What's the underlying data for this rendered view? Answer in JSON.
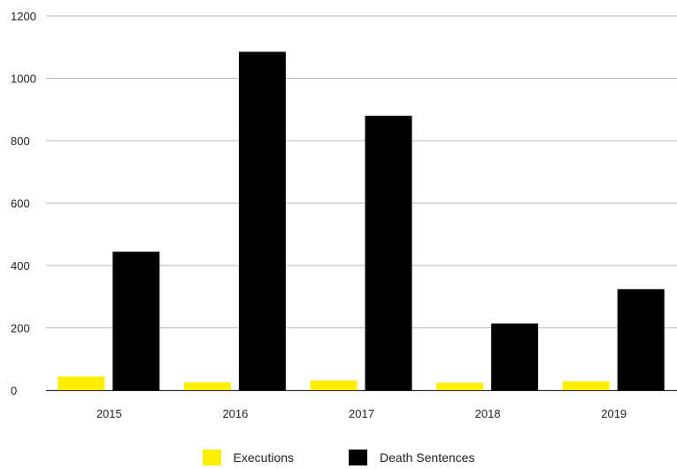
{
  "chart_data": {
    "type": "bar",
    "title": "",
    "xlabel": "",
    "ylabel": "",
    "categories": [
      "2015",
      "2016",
      "2017",
      "2018",
      "2019"
    ],
    "series": [
      {
        "name": "Executions",
        "color": "#ffee00",
        "values": [
          44,
          25,
          31,
          24,
          28
        ]
      },
      {
        "name": "Death Sentences",
        "color": "#000000",
        "values": [
          444,
          1085,
          880,
          214,
          324
        ]
      }
    ],
    "ylim": [
      0,
      1200
    ],
    "yticks": [
      "0",
      "200",
      "400",
      "600",
      "800",
      "1000",
      "1200"
    ],
    "grid": true,
    "legend_position": "bottom"
  }
}
